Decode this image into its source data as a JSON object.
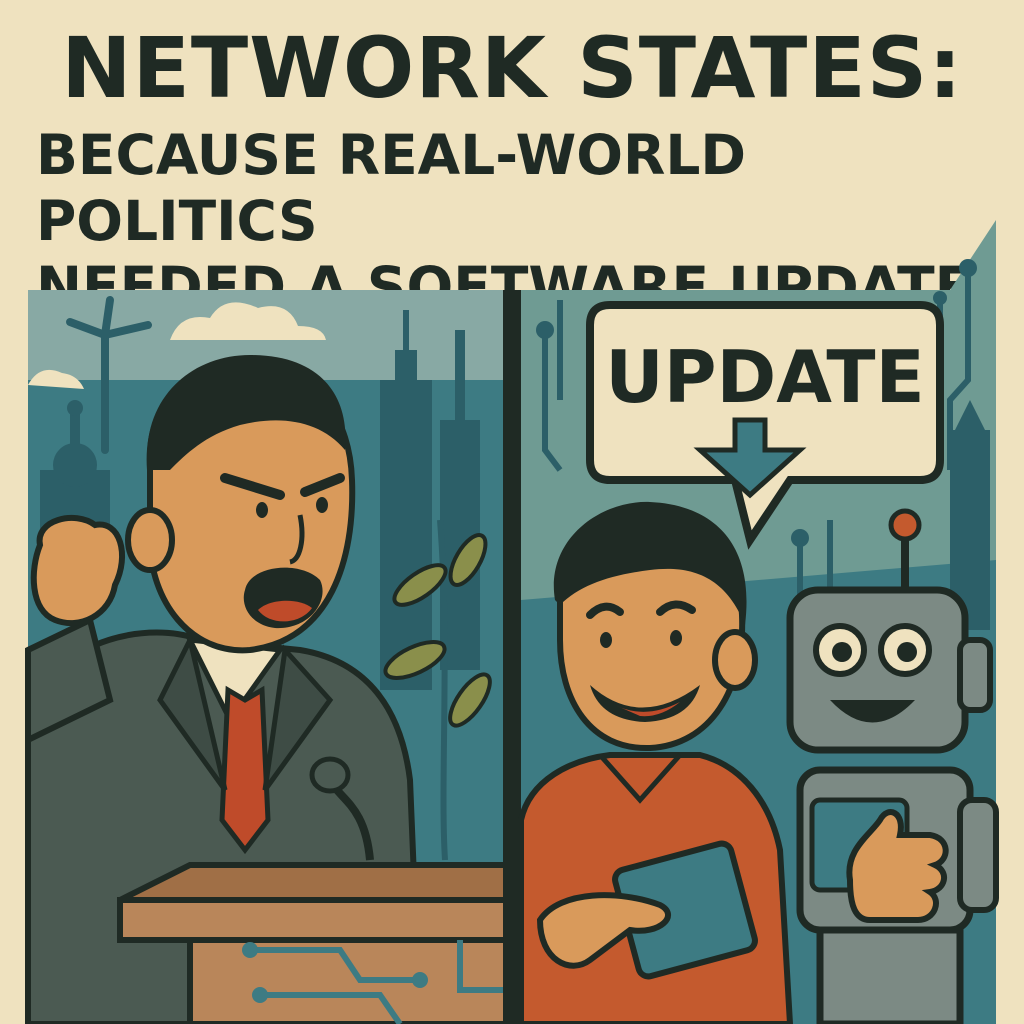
{
  "headline": {
    "title": "NETWORK STATES:",
    "subtitle_line1": "BECAUSE REAL-WORLD POLITICS",
    "subtitle_line2": "NEEDED A SOFTWARE UPDATE"
  },
  "right_panel": {
    "speech_bubble": "UPDATE",
    "bubble_icon": "down-arrow-icon"
  },
  "colors": {
    "background": "#efe2bf",
    "ink": "#1f2a24",
    "teal": "#3d7b83",
    "dark_teal": "#2c5f68",
    "skin": "#d99a5b",
    "suit": "#4b5a52",
    "tie": "#bf4b2a",
    "shirt_orange": "#c45a2e",
    "robot": "#7c8a84",
    "podium": "#b9865a"
  }
}
